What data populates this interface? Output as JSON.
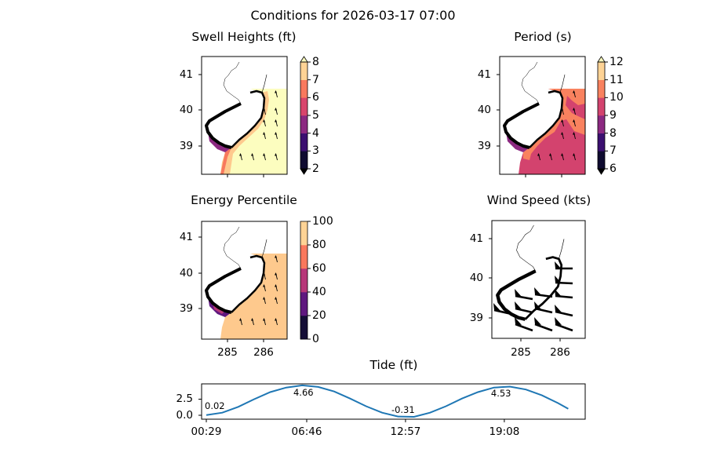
{
  "suptitle": "Conditions for 2026-03-17 07:00",
  "panels": {
    "swell": {
      "title": "Swell Heights (ft)",
      "yticks": [
        "41",
        "40",
        "39"
      ],
      "cbar_ticks": [
        "2",
        "3",
        "4",
        "5",
        "6",
        "7",
        "8"
      ],
      "cbar_colors": [
        "#0f0b30",
        "#3b0f70",
        "#8c2981",
        "#d8456c",
        "#f8795e",
        "#fed395"
      ],
      "extend": "both",
      "ocean_color": "#fcfdbf"
    },
    "period": {
      "title": "Period (s)",
      "yticks": [
        "41",
        "40",
        "39"
      ],
      "cbar_ticks": [
        "6",
        "7",
        "8",
        "9",
        "10",
        "11",
        "12"
      ],
      "cbar_colors": [
        "#0f0b30",
        "#3b0f70",
        "#8c2981",
        "#d3436e",
        "#f9825f",
        "#fed395"
      ],
      "extend": "both"
    },
    "energy": {
      "title": "Energy Percentile",
      "yticks": [
        "41",
        "40",
        "39"
      ],
      "xticks": [
        "285",
        "286"
      ],
      "cbar_ticks": [
        "0",
        "20",
        "40",
        "60",
        "80",
        "100"
      ],
      "cbar_colors": [
        "#140e36",
        "#5f187f",
        "#b73779",
        "#f9785d",
        "#fed395"
      ],
      "extend": "neither"
    },
    "wind": {
      "title": "Wind Speed (kts)",
      "yticks": [
        "41",
        "40",
        "39"
      ],
      "xticks": [
        "285",
        "286"
      ]
    }
  },
  "chart_data": {
    "type": "line",
    "title": "Tide (ft)",
    "yticks": [
      "2.5",
      "0.0"
    ],
    "xticks": [
      "00:29",
      "06:46",
      "12:57",
      "19:08"
    ],
    "color": "#1f77b4",
    "x": [
      "00:29",
      "01:29",
      "02:29",
      "03:29",
      "04:29",
      "05:29",
      "06:29",
      "07:29",
      "08:29",
      "09:29",
      "10:29",
      "11:29",
      "12:29",
      "13:29",
      "14:29",
      "15:29",
      "16:29",
      "17:29",
      "18:29",
      "19:29",
      "20:29",
      "21:29",
      "22:29",
      "23:08"
    ],
    "values": [
      0.02,
      0.4,
      1.3,
      2.5,
      3.6,
      4.3,
      4.65,
      4.4,
      3.7,
      2.6,
      1.4,
      0.4,
      -0.2,
      -0.25,
      0.4,
      1.4,
      2.6,
      3.6,
      4.3,
      4.45,
      4.0,
      3.1,
      1.9,
      1.0
    ],
    "annotations": [
      {
        "time": "00:29",
        "value": 0.02,
        "label": "0.02"
      },
      {
        "time": "06:46",
        "value": 4.66,
        "label": "4.66"
      },
      {
        "time": "12:57",
        "value": -0.31,
        "label": "-0.31"
      },
      {
        "time": "19:08",
        "value": 4.53,
        "label": "4.53"
      }
    ]
  }
}
